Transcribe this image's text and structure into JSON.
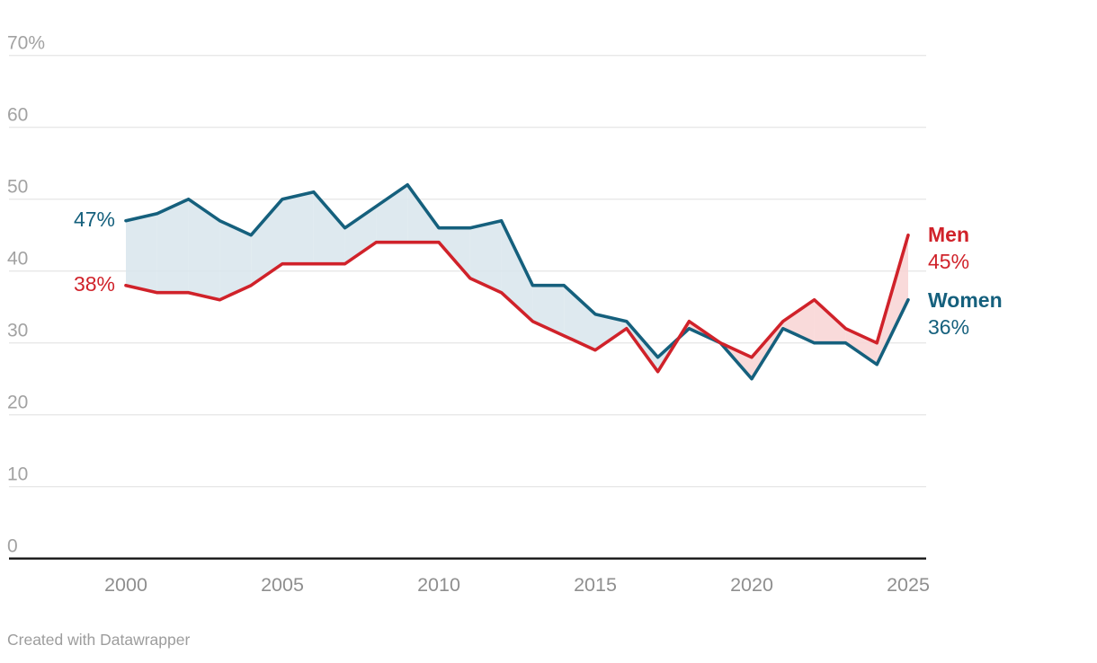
{
  "chart_data": {
    "type": "line",
    "title": "",
    "x": [
      2000,
      2001,
      2002,
      2003,
      2004,
      2005,
      2006,
      2007,
      2008,
      2009,
      2010,
      2011,
      2012,
      2013,
      2014,
      2015,
      2016,
      2017,
      2018,
      2019,
      2020,
      2021,
      2022,
      2023,
      2024,
      2025
    ],
    "series": [
      {
        "name": "Women",
        "color": "#15607d",
        "values": [
          47,
          48,
          50,
          47,
          45,
          50,
          51,
          46,
          49,
          52,
          46,
          46,
          47,
          38,
          38,
          34,
          33,
          28,
          32,
          30,
          25,
          32,
          30,
          30,
          27,
          36
        ]
      },
      {
        "name": "Men",
        "color": "#d0222a",
        "values": [
          38,
          37,
          37,
          36,
          38,
          41,
          41,
          41,
          44,
          44,
          44,
          39,
          37,
          33,
          31,
          29,
          32,
          26,
          33,
          30,
          28,
          33,
          36,
          32,
          30,
          45
        ]
      }
    ],
    "ylim": [
      0,
      70
    ],
    "xlim": [
      2000,
      2025
    ],
    "grid": "horizontal",
    "legend_position": "end-of-line-labels",
    "y_ticks": [
      {
        "value": 70,
        "label": "70%"
      },
      {
        "value": 60,
        "label": "60"
      },
      {
        "value": 50,
        "label": "50"
      },
      {
        "value": 40,
        "label": "40"
      },
      {
        "value": 30,
        "label": "30"
      },
      {
        "value": 20,
        "label": "20"
      },
      {
        "value": 10,
        "label": "10"
      },
      {
        "value": 0,
        "label": "0"
      }
    ],
    "x_ticks": [
      {
        "value": 2000,
        "label": "2000"
      },
      {
        "value": 2005,
        "label": "2005"
      },
      {
        "value": 2010,
        "label": "2010"
      },
      {
        "value": 2015,
        "label": "2015"
      },
      {
        "value": 2020,
        "label": "2020"
      },
      {
        "value": 2025,
        "label": "2025"
      }
    ],
    "fills": {
      "women_above": "#d8e5ec",
      "men_above": "#f8d4d4"
    },
    "annotations": {
      "start_women": {
        "label": "47%"
      },
      "start_men": {
        "label": "38%"
      },
      "end_men": {
        "title": "Men",
        "value": "45%"
      },
      "end_women": {
        "title": "Women",
        "value": "36%"
      }
    }
  },
  "footer": {
    "credit": "Created with Datawrapper"
  },
  "colors": {
    "women": "#15607d",
    "men": "#d0222a",
    "fill_women_above": "#d8e5ec",
    "fill_men_above": "#f8d4d4",
    "grid": "#e8e8e8",
    "axis": "#161616",
    "y_tick_label": "#a2a2a2",
    "x_tick_label": "#8f8f8f",
    "credit": "#9d9d9d"
  }
}
